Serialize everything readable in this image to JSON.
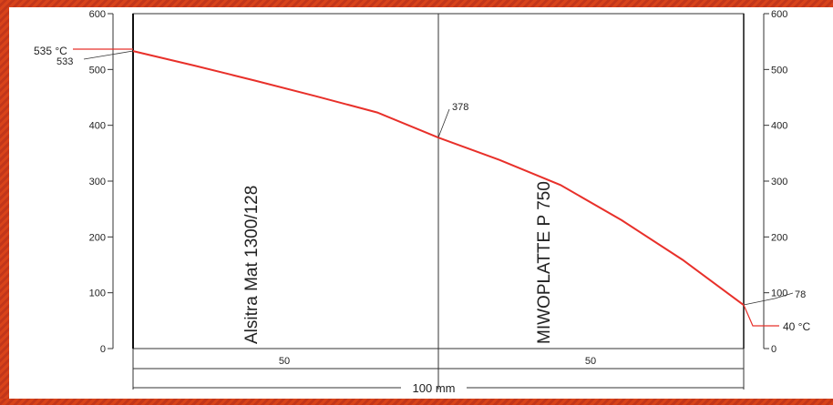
{
  "chart_data": {
    "type": "line",
    "title": "",
    "xlabel": "",
    "ylabel": "",
    "ylim": [
      0,
      600
    ],
    "xlim": [
      0,
      100
    ],
    "y_ticks": [
      "0",
      "100",
      "200",
      "300",
      "400",
      "500",
      "600"
    ],
    "grid": false,
    "series": [
      {
        "values": [
          {
            "x": 0,
            "y": 533
          },
          {
            "x": 10,
            "y": 507
          },
          {
            "x": 20,
            "y": 480
          },
          {
            "x": 30,
            "y": 452
          },
          {
            "x": 40,
            "y": 423
          },
          {
            "x": 50,
            "y": 378
          },
          {
            "x": 60,
            "y": 338
          },
          {
            "x": 70,
            "y": 293
          },
          {
            "x": 80,
            "y": 230
          },
          {
            "x": 90,
            "y": 159
          },
          {
            "x": 100,
            "y": 78
          }
        ],
        "color": "#e8302a"
      }
    ],
    "annotations": {
      "hot_side_temp": "535 °C",
      "hot_surface_value": "533",
      "interface_value": "378",
      "cold_surface_value": "78",
      "ambient_temp": "40 °C"
    },
    "layers": [
      {
        "name": "Alsitra Mat 1300/128",
        "thickness": "50"
      },
      {
        "name": "MIWOPLATTE P 750",
        "thickness": "50"
      }
    ],
    "total_thickness": "100 mm"
  }
}
